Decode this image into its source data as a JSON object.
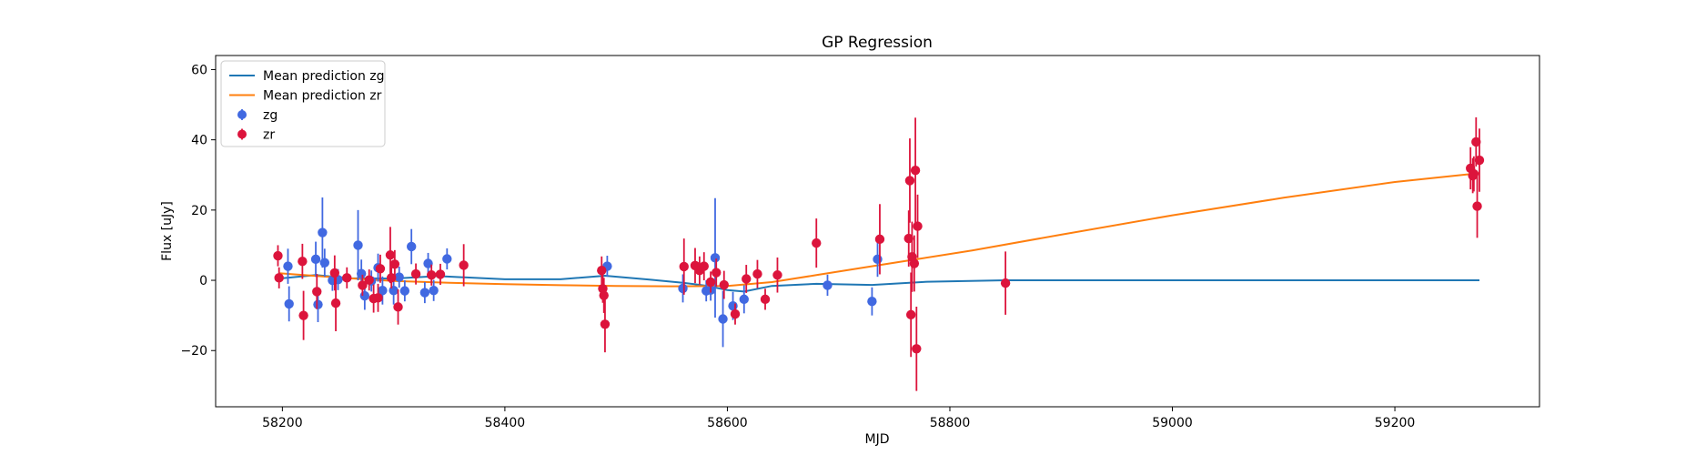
{
  "chart_data": {
    "type": "scatter",
    "title": "GP Regression",
    "xlabel": "MJD",
    "ylabel": "Flux [uJy]",
    "xlim": [
      58140,
      59330
    ],
    "ylim": [
      -36,
      64
    ],
    "xticks": [
      58200,
      58400,
      58600,
      58800,
      59000,
      59200
    ],
    "yticks": [
      -20,
      0,
      20,
      40,
      60
    ],
    "grid": false,
    "legend_position": "top-left",
    "series": [
      {
        "name": "Mean prediction zg",
        "kind": "line",
        "color": "#1f77b4",
        "x": [
          58197,
          58230,
          58260,
          58300,
          58340,
          58400,
          58450,
          58490,
          58530,
          58560,
          58580,
          58600,
          58615,
          58640,
          58680,
          58730,
          58780,
          58850,
          58900,
          59000,
          59100,
          59200,
          59276
        ],
        "y": [
          0.5,
          1.5,
          0.6,
          0.5,
          1.2,
          0.3,
          0.3,
          1.3,
          0.2,
          -0.7,
          -1.5,
          -2.8,
          -3.2,
          -1.6,
          -1.0,
          -1.3,
          -0.4,
          0.0,
          0.0,
          0.0,
          0.0,
          0.0,
          0.0
        ]
      },
      {
        "name": "Mean prediction zr",
        "kind": "line",
        "color": "#ff7f0e",
        "x": [
          58197,
          58250,
          58300,
          58350,
          58400,
          58450,
          58500,
          58550,
          58600,
          58640,
          58680,
          58720,
          58770,
          58820,
          58900,
          59000,
          59100,
          59200,
          59276
        ],
        "y": [
          2.0,
          0.8,
          -0.2,
          -0.7,
          -1.1,
          -1.4,
          -1.6,
          -1.7,
          -1.6,
          -0.5,
          1.5,
          3.5,
          6.0,
          8.5,
          13.0,
          18.5,
          23.5,
          28.0,
          30.5
        ]
      },
      {
        "name": "zg",
        "kind": "errorbar",
        "color": "#4169e1",
        "x": [
          58205,
          58206,
          58230,
          58232,
          58236,
          58238,
          58245,
          58250,
          58268,
          58271,
          58274,
          58280,
          58286,
          58290,
          58300,
          58305,
          58310,
          58316,
          58328,
          58331,
          58336,
          58348,
          58492,
          58560,
          58581,
          58585,
          58589,
          58596,
          58605,
          58615,
          58690,
          58730,
          58735
        ],
        "y": [
          4.0,
          -6.7,
          6.0,
          -6.9,
          13.6,
          5.0,
          0.0,
          0.2,
          10.0,
          1.9,
          -4.4,
          -0.2,
          3.6,
          -2.9,
          -2.9,
          0.9,
          -3.0,
          9.6,
          -3.5,
          4.8,
          -2.9,
          6.1,
          4.0,
          -2.3,
          -3.0,
          -2.8,
          6.4,
          -11.0,
          -7.3,
          -5.4,
          -1.4,
          -6.0,
          6.0
        ],
        "yerr": [
          5,
          5,
          5,
          5,
          10,
          4,
          3,
          3,
          10,
          4,
          4,
          3,
          4,
          4,
          4,
          3,
          3,
          5,
          3,
          3,
          3,
          3,
          3,
          4,
          3,
          3,
          17,
          8,
          4,
          4,
          3,
          4,
          5
        ]
      },
      {
        "name": "zr",
        "kind": "errorbar",
        "color": "#dc143c",
        "x": [
          58196,
          58197,
          58218,
          58219,
          58231,
          58247,
          58248,
          58258,
          58272,
          58278,
          58282,
          58286,
          58288,
          58297,
          58298,
          58301,
          58304,
          58320,
          58334,
          58342,
          58363,
          58487,
          58488,
          58489,
          58490,
          58561,
          58571,
          58575,
          58579,
          58585,
          58590,
          58597,
          58607,
          58617,
          58627,
          58634,
          58645,
          58680,
          58737,
          58763,
          58764,
          58765,
          58766,
          58768,
          58769,
          58770,
          58771,
          58850,
          59268,
          59270,
          59271,
          59273,
          59274,
          59276
        ],
        "y": [
          7.0,
          0.7,
          5.4,
          -10.0,
          -3.2,
          2.1,
          -6.5,
          0.7,
          -1.4,
          0.1,
          -5.2,
          -5.0,
          3.3,
          7.2,
          0.7,
          4.6,
          -7.6,
          1.8,
          1.5,
          1.7,
          4.3,
          2.8,
          -2.4,
          -4.3,
          -12.5,
          3.9,
          4.2,
          2.8,
          4.0,
          -0.5,
          2.2,
          -1.3,
          -9.6,
          0.4,
          1.8,
          -5.4,
          1.5,
          10.6,
          11.7,
          11.9,
          28.4,
          -9.8,
          6.7,
          4.8,
          31.3,
          -19.5,
          15.4,
          -0.8,
          31.9,
          29.8,
          30.3,
          39.4,
          21.1,
          34.2
        ],
        "yerr": [
          3,
          3,
          5,
          7,
          5,
          5,
          8,
          3,
          3,
          3,
          4,
          4,
          4,
          8,
          3,
          4,
          5,
          3,
          3,
          3,
          6,
          4,
          4,
          5,
          8,
          8,
          5,
          4,
          4,
          3,
          4,
          4,
          3,
          4,
          4,
          3,
          5,
          7,
          10,
          8,
          12,
          12,
          10,
          8,
          15,
          12,
          9,
          9,
          6,
          5,
          5,
          7,
          9,
          9
        ]
      }
    ]
  }
}
